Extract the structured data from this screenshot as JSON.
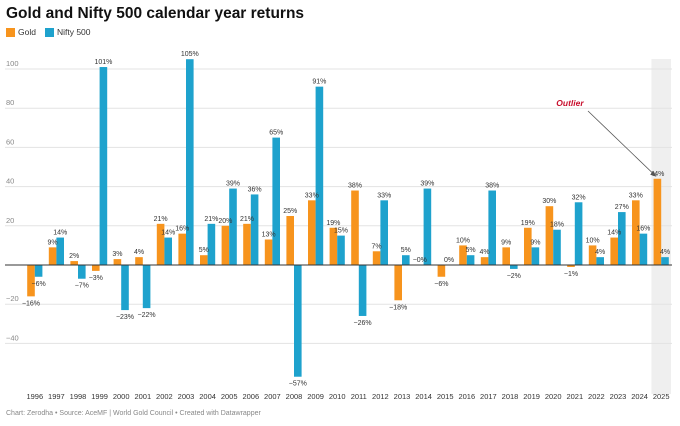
{
  "title": "Gold and Nifty 500 calendar year returns",
  "footer": "Chart: Zerodha • Source: AceMF | World Gold Council • Created with Datawrapper",
  "colors": {
    "gold": "#f7941d",
    "nifty": "#1ea2cd",
    "highlight": "#efefef",
    "annotation": "#c8102e"
  },
  "chart_data": {
    "type": "bar",
    "categories": [
      "1996",
      "1997",
      "1998",
      "1999",
      "2000",
      "2001",
      "2002",
      "2003",
      "2004",
      "2005",
      "2006",
      "2007",
      "2008",
      "2009",
      "2010",
      "2011",
      "2012",
      "2013",
      "2014",
      "2015",
      "2016",
      "2017",
      "2018",
      "2019",
      "2020",
      "2021",
      "2022",
      "2023",
      "2024",
      "2025"
    ],
    "series": [
      {
        "name": "Gold",
        "values": [
          -16,
          9,
          2,
          -3,
          3,
          4,
          21,
          16,
          5,
          20,
          21,
          13,
          25,
          33,
          19,
          38,
          7,
          -18,
          0,
          -6,
          10,
          4,
          9,
          19,
          30,
          -1,
          10,
          14,
          33,
          44
        ]
      },
      {
        "name": "Nifty 500",
        "values": [
          -6,
          14,
          -7,
          101,
          -23,
          -22,
          14,
          105,
          21,
          39,
          36,
          65,
          -57,
          91,
          15,
          -26,
          33,
          5,
          39,
          0,
          5,
          38,
          -2,
          9,
          18,
          32,
          4,
          27,
          16,
          4
        ]
      }
    ],
    "gold_labels": [
      "-16%",
      "9%",
      "2%",
      "-3%",
      "3%",
      "4%",
      "21%",
      "16%",
      "5%",
      "20%",
      "21%",
      "13%",
      "25%",
      "33%",
      "19%",
      "38%",
      "7%",
      "-18%",
      "-0%",
      "-6%",
      "10%",
      "4%",
      "9%",
      "19%",
      "30%",
      "-1%",
      "10%",
      "14%",
      "33%",
      "44%"
    ],
    "nifty_labels": [
      "-6%",
      "14%",
      "-7%",
      "101%",
      "-23%",
      "-22%",
      "14%",
      "105%",
      "21%",
      "39%",
      "36%",
      "65%",
      "-57%",
      "91%",
      "15%",
      "-26%",
      "33%",
      "5%",
      "39%",
      "0%",
      "5%",
      "38%",
      "-2%",
      "9%",
      "18%",
      "32%",
      "4%",
      "27%",
      "16%",
      "4%"
    ],
    "ylim": [
      -60,
      110
    ],
    "yticks": [
      "100",
      "80",
      "60",
      "40",
      "20",
      "0",
      "-20",
      "-40"
    ],
    "grid": true,
    "highlight_category": "2025",
    "annotation": {
      "text": "Outlier",
      "category": "2025"
    }
  }
}
